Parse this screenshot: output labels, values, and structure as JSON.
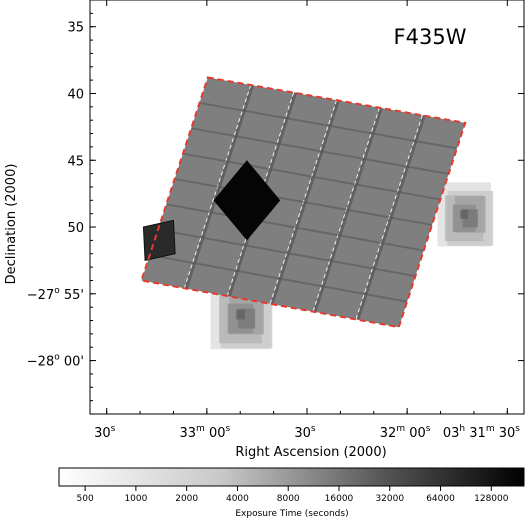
{
  "chart_data": {
    "type": "heatmap",
    "title": "F435W",
    "xlabel": "Right Ascension (2000)",
    "ylabel": "Declination (2000)",
    "x_ticks": [
      {
        "ra_sec": 30,
        "label": "30",
        "sup": "s",
        "hm": ""
      },
      {
        "ra_sec": 0,
        "label": "00",
        "sup": "s",
        "hm": "33",
        "hm_sup": "m"
      },
      {
        "ra_sec": -30,
        "label": "30",
        "sup": "s",
        "hm": ""
      },
      {
        "ra_sec": -60,
        "label": "00",
        "sup": "s",
        "hm": "32",
        "hm_sup": "m"
      },
      {
        "ra_sec": -90,
        "label": "30",
        "sup": "s",
        "hm": "03",
        "hm_sup": "h",
        "hm2": "31",
        "hm2_sup": "m"
      }
    ],
    "y_ticks": [
      {
        "dec_min": 35,
        "label": "35",
        "prefix": ""
      },
      {
        "dec_min": 40,
        "label": "40",
        "prefix": ""
      },
      {
        "dec_min": 45,
        "label": "45",
        "prefix": ""
      },
      {
        "dec_min": 50,
        "label": "50",
        "prefix": ""
      },
      {
        "dec_min": 55,
        "label": "55'",
        "prefix": "−27",
        "prefix_sup": "o"
      },
      {
        "dec_min": 60,
        "label": "00'",
        "prefix": "−28",
        "prefix_sup": "o"
      }
    ],
    "xlim": [
      35,
      -95
    ],
    "ylim": [
      64,
      33
    ],
    "colorbar": {
      "label": "Exposure Time (seconds)",
      "ticks": [
        "500",
        "1000",
        "2000",
        "4000",
        "8000",
        "16000",
        "32000",
        "64000",
        "128000"
      ],
      "scale": "log",
      "range": [
        350,
        200000
      ]
    },
    "main_mosaic": {
      "corners": [
        [
          -0.3,
          38.8
        ],
        [
          -77.4,
          42.2
        ],
        [
          -57.5,
          57.5
        ],
        [
          19.6,
          54.0
        ]
      ],
      "exposure": 8000,
      "outline": "dashed-red"
    },
    "deep_diamond": {
      "corners": [
        [
          -12,
          45.0
        ],
        [
          -22,
          48.0
        ],
        [
          -12,
          51.0
        ],
        [
          -2,
          48.0
        ]
      ],
      "exposure": 200000
    },
    "dark_square": {
      "corners": [
        [
          10.0,
          49.5
        ],
        [
          19.0,
          50.0
        ],
        [
          18.5,
          52.5
        ],
        [
          9.5,
          52.0
        ]
      ],
      "exposure": 40000
    },
    "side_patches": [
      {
        "name": "east",
        "center": [
          -78,
          49.2
        ],
        "size": [
          16,
          4.8
        ],
        "peak": 16000
      },
      {
        "name": "south",
        "center": [
          -11,
          56.7
        ],
        "size": [
          18,
          5.2
        ],
        "peak": 16000
      },
      {
        "name": "north",
        "center": [
          -15,
          46.8
        ],
        "size": [
          12,
          4.0
        ],
        "peak": 8000
      }
    ],
    "colors": {
      "outline": "#e53a2e",
      "mosaic": "#8a8a8a",
      "gap": "#555555",
      "seam": "#ffffff"
    }
  }
}
